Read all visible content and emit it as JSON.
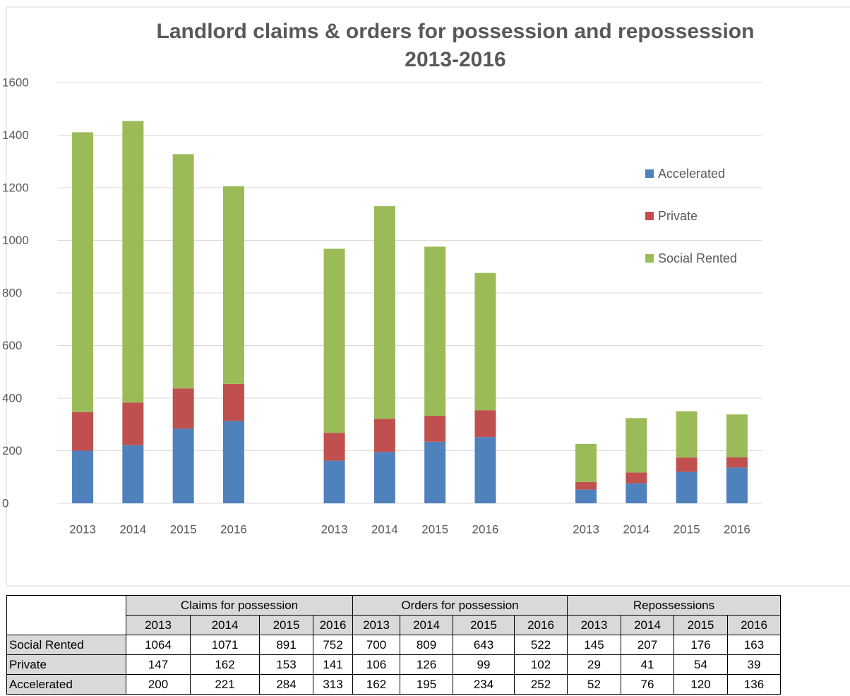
{
  "chart_data": {
    "type": "bar",
    "stacked": true,
    "title": "Landlord claims & orders for possession and repossession 2013-2016",
    "categories": [
      "2013",
      "2014",
      "2015",
      "2016",
      null,
      "2013",
      "2014",
      "2015",
      "2016",
      null,
      "2013",
      "2014",
      "2015",
      "2016"
    ],
    "series": [
      {
        "name": "Accelerated",
        "color": "#4f81bd",
        "values": [
          200,
          221,
          284,
          313,
          null,
          162,
          195,
          234,
          252,
          null,
          52,
          76,
          120,
          136
        ]
      },
      {
        "name": "Private",
        "color": "#c0504d",
        "values": [
          147,
          162,
          153,
          141,
          null,
          106,
          126,
          99,
          102,
          null,
          29,
          41,
          54,
          39
        ]
      },
      {
        "name": "Social Rented",
        "color": "#9bbb59",
        "values": [
          1064,
          1071,
          891,
          752,
          null,
          700,
          809,
          643,
          522,
          null,
          145,
          207,
          176,
          163
        ]
      }
    ],
    "ylim": [
      0,
      1600
    ],
    "yticks": [
      0,
      200,
      400,
      600,
      800,
      1000,
      1200,
      1400,
      1600
    ],
    "grid": true,
    "legend": "right"
  },
  "table": {
    "groups": [
      "Claims for possession",
      "Orders for possession",
      "Repossessions"
    ],
    "years": [
      "2013",
      "2014",
      "2015",
      "2016",
      "2013",
      "2014",
      "2015",
      "2016",
      "2013",
      "2014",
      "2015",
      "2016"
    ],
    "rows": [
      {
        "label": "Social Rented",
        "values": [
          1064,
          1071,
          891,
          752,
          700,
          809,
          643,
          522,
          145,
          207,
          176,
          163
        ]
      },
      {
        "label": "Private",
        "values": [
          147,
          162,
          153,
          141,
          106,
          126,
          99,
          102,
          29,
          41,
          54,
          39
        ]
      },
      {
        "label": "Accelerated",
        "values": [
          200,
          221,
          284,
          313,
          162,
          195,
          234,
          252,
          52,
          76,
          120,
          136
        ]
      }
    ]
  }
}
